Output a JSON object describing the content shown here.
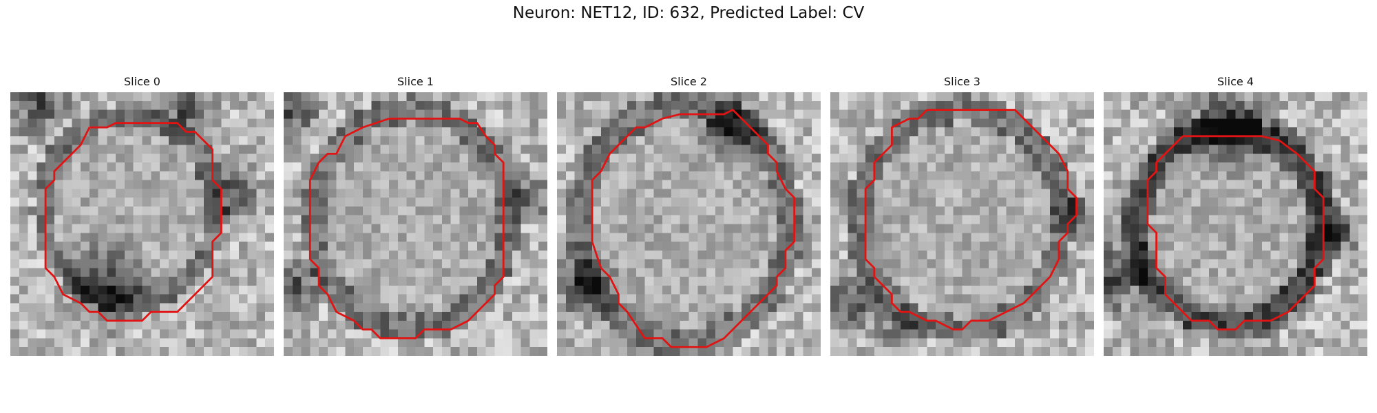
{
  "figure": {
    "title": "Neuron: NET12, ID: 632, Predicted Label: CV",
    "contour_color": "#e11414",
    "colormap": "grayscale",
    "panels": [
      {
        "title": "Slice 0"
      },
      {
        "title": "Slice 1"
      },
      {
        "title": "Slice 2"
      },
      {
        "title": "Slice 3"
      },
      {
        "title": "Slice 4"
      }
    ]
  }
}
